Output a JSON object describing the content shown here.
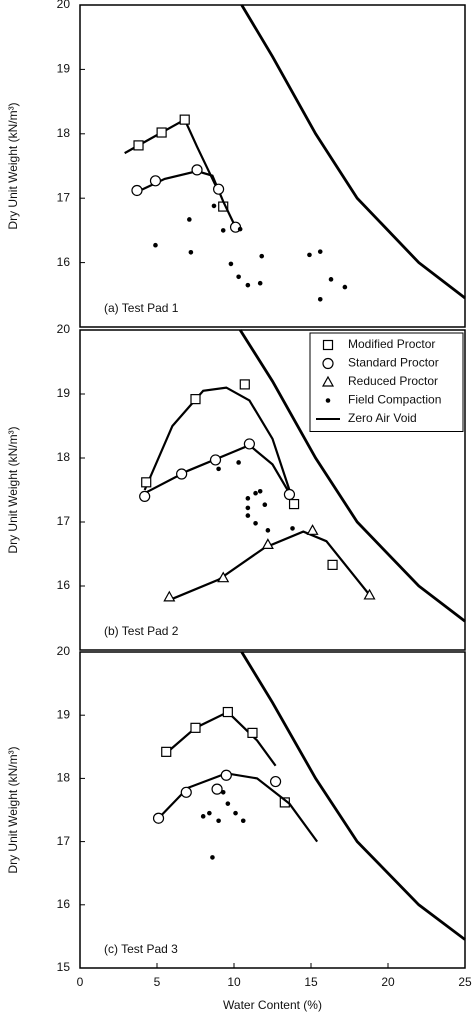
{
  "chart_data": [
    {
      "type": "scatter",
      "annotation": "(a) Test Pad 1",
      "ylabel": "Dry Unit Weight (kN/m³)",
      "color": "#000000",
      "xlim": [
        0,
        25
      ],
      "ylim": [
        15,
        20
      ],
      "yticks": [
        16,
        17,
        18,
        19,
        20
      ],
      "series": [
        {
          "marker": "square",
          "x": [
            3.8,
            5.3,
            6.8,
            9.3
          ],
          "values": [
            17.82,
            18.02,
            18.22,
            16.87
          ],
          "curve": {
            "x": [
              2.9,
              3.8,
              5.3,
              6.8,
              7.6,
              8.8
            ],
            "values": [
              17.7,
              17.82,
              18.02,
              18.22,
              17.8,
              17.2
            ]
          }
        },
        {
          "marker": "circle",
          "x": [
            3.7,
            4.9,
            7.6,
            9.0,
            10.1
          ],
          "values": [
            17.12,
            17.27,
            17.44,
            17.14,
            16.55
          ],
          "curve": {
            "x": [
              3.9,
              5.5,
              7.6,
              8.6,
              9.3,
              10.2
            ],
            "values": [
              17.12,
              17.3,
              17.42,
              17.35,
              16.95,
              16.5
            ]
          }
        },
        {
          "marker": "dot",
          "x": [
            4.9,
            7.1,
            7.2,
            8.7,
            9.3,
            9.8,
            10.4,
            10.3,
            10.9,
            11.7,
            11.8,
            14.9,
            15.6,
            15.6,
            16.3,
            17.2
          ],
          "values": [
            16.27,
            16.67,
            16.16,
            16.88,
            16.5,
            15.98,
            16.52,
            15.78,
            15.65,
            15.68,
            16.1,
            16.12,
            16.17,
            15.43,
            15.74,
            15.62
          ]
        },
        {
          "marker": "line",
          "x": [
            10.5,
            12.5,
            15.3,
            18.0,
            22.0,
            25.0
          ],
          "values": [
            20,
            19.2,
            18,
            17,
            16,
            15.45
          ]
        }
      ]
    },
    {
      "type": "scatter",
      "annotation": "(b) Test Pad 2",
      "ylabel": "Dry Unit Weight (kN/m³)",
      "color": "#000000",
      "xlim": [
        0,
        25
      ],
      "ylim": [
        15,
        20
      ],
      "yticks": [
        16,
        17,
        18,
        19,
        20
      ],
      "legend": "upper right",
      "series": [
        {
          "name": "Modified Proctor",
          "marker": "square",
          "x": [
            4.3,
            7.5,
            10.7,
            13.9,
            16.4
          ],
          "values": [
            17.62,
            18.92,
            19.15,
            17.28,
            16.33
          ],
          "curve": {
            "x": [
              4.2,
              6.0,
              8.0,
              9.5,
              11.0,
              12.5,
              13.6
            ],
            "values": [
              17.5,
              18.5,
              19.05,
              19.1,
              18.9,
              18.3,
              17.5
            ]
          }
        },
        {
          "name": "Standard Proctor",
          "marker": "circle",
          "x": [
            4.2,
            6.6,
            8.8,
            11.0,
            13.6
          ],
          "values": [
            17.4,
            17.75,
            17.97,
            18.22,
            17.43
          ],
          "curve": {
            "x": [
              4.2,
              7.0,
              10.0,
              11.0,
              12.5,
              13.6
            ],
            "values": [
              17.45,
              17.8,
              18.1,
              18.2,
              17.9,
              17.45
            ]
          }
        },
        {
          "name": "Reduced Proctor",
          "marker": "triangle",
          "x": [
            5.8,
            9.3,
            12.2,
            15.1,
            18.8
          ],
          "values": [
            15.83,
            16.13,
            16.65,
            16.87,
            15.86
          ],
          "curve": {
            "x": [
              6.0,
              9.0,
              12.0,
              14.5,
              16.0,
              18.8
            ],
            "values": [
              15.8,
              16.1,
              16.6,
              16.85,
              16.7,
              15.86
            ]
          }
        },
        {
          "name": "Field Compaction",
          "marker": "dot",
          "x": [
            9.0,
            10.3,
            10.9,
            10.9,
            10.9,
            11.4,
            11.7,
            12.0,
            11.4,
            12.2,
            13.8
          ],
          "values": [
            17.83,
            17.93,
            17.37,
            17.22,
            17.1,
            17.45,
            17.48,
            17.27,
            16.98,
            16.87,
            16.9
          ]
        },
        {
          "name": "Zero Air Void",
          "marker": "line",
          "x": [
            10.4,
            12.5,
            15.3,
            18.0,
            22.0,
            25.0
          ],
          "values": [
            20,
            19.2,
            18,
            17,
            16,
            15.45
          ]
        }
      ]
    },
    {
      "type": "scatter",
      "annotation": "(c) Test Pad 3",
      "ylabel": "Dry Unit Weight (kN/m³)",
      "xlabel": "Water Content (%)",
      "color": "#000000",
      "xlim": [
        0,
        25
      ],
      "ylim": [
        15,
        20
      ],
      "yticks": [
        15,
        16,
        17,
        18,
        19,
        20
      ],
      "xticks": [
        0,
        5,
        10,
        15,
        20,
        25
      ],
      "series": [
        {
          "marker": "square",
          "x": [
            5.6,
            7.5,
            9.6,
            11.2,
            13.3
          ],
          "values": [
            18.42,
            18.8,
            19.05,
            18.72,
            17.62
          ],
          "curve": {
            "x": [
              5.6,
              7.5,
              9.6,
              11.5,
              12.7
            ],
            "values": [
              18.4,
              18.8,
              19.05,
              18.6,
              18.2
            ]
          }
        },
        {
          "marker": "circle",
          "x": [
            5.1,
            6.9,
            9.5,
            8.9,
            12.7
          ],
          "values": [
            17.37,
            17.78,
            18.05,
            17.83,
            17.95
          ],
          "curve": {
            "x": [
              5.1,
              7.0,
              9.5,
              11.5,
              13.6,
              15.4
            ],
            "values": [
              17.37,
              17.85,
              18.08,
              18.0,
              17.6,
              17.0
            ]
          }
        },
        {
          "marker": "dot",
          "x": [
            8.0,
            8.4,
            9.0,
            9.3,
            9.6,
            10.1,
            10.6,
            8.6
          ],
          "values": [
            17.4,
            17.45,
            17.33,
            17.78,
            17.6,
            17.45,
            17.33,
            16.75
          ]
        },
        {
          "marker": "line",
          "x": [
            10.5,
            12.5,
            15.3,
            18.0,
            22.0,
            25.0
          ],
          "values": [
            20,
            19.2,
            18,
            17,
            16,
            15.45
          ]
        }
      ]
    }
  ]
}
